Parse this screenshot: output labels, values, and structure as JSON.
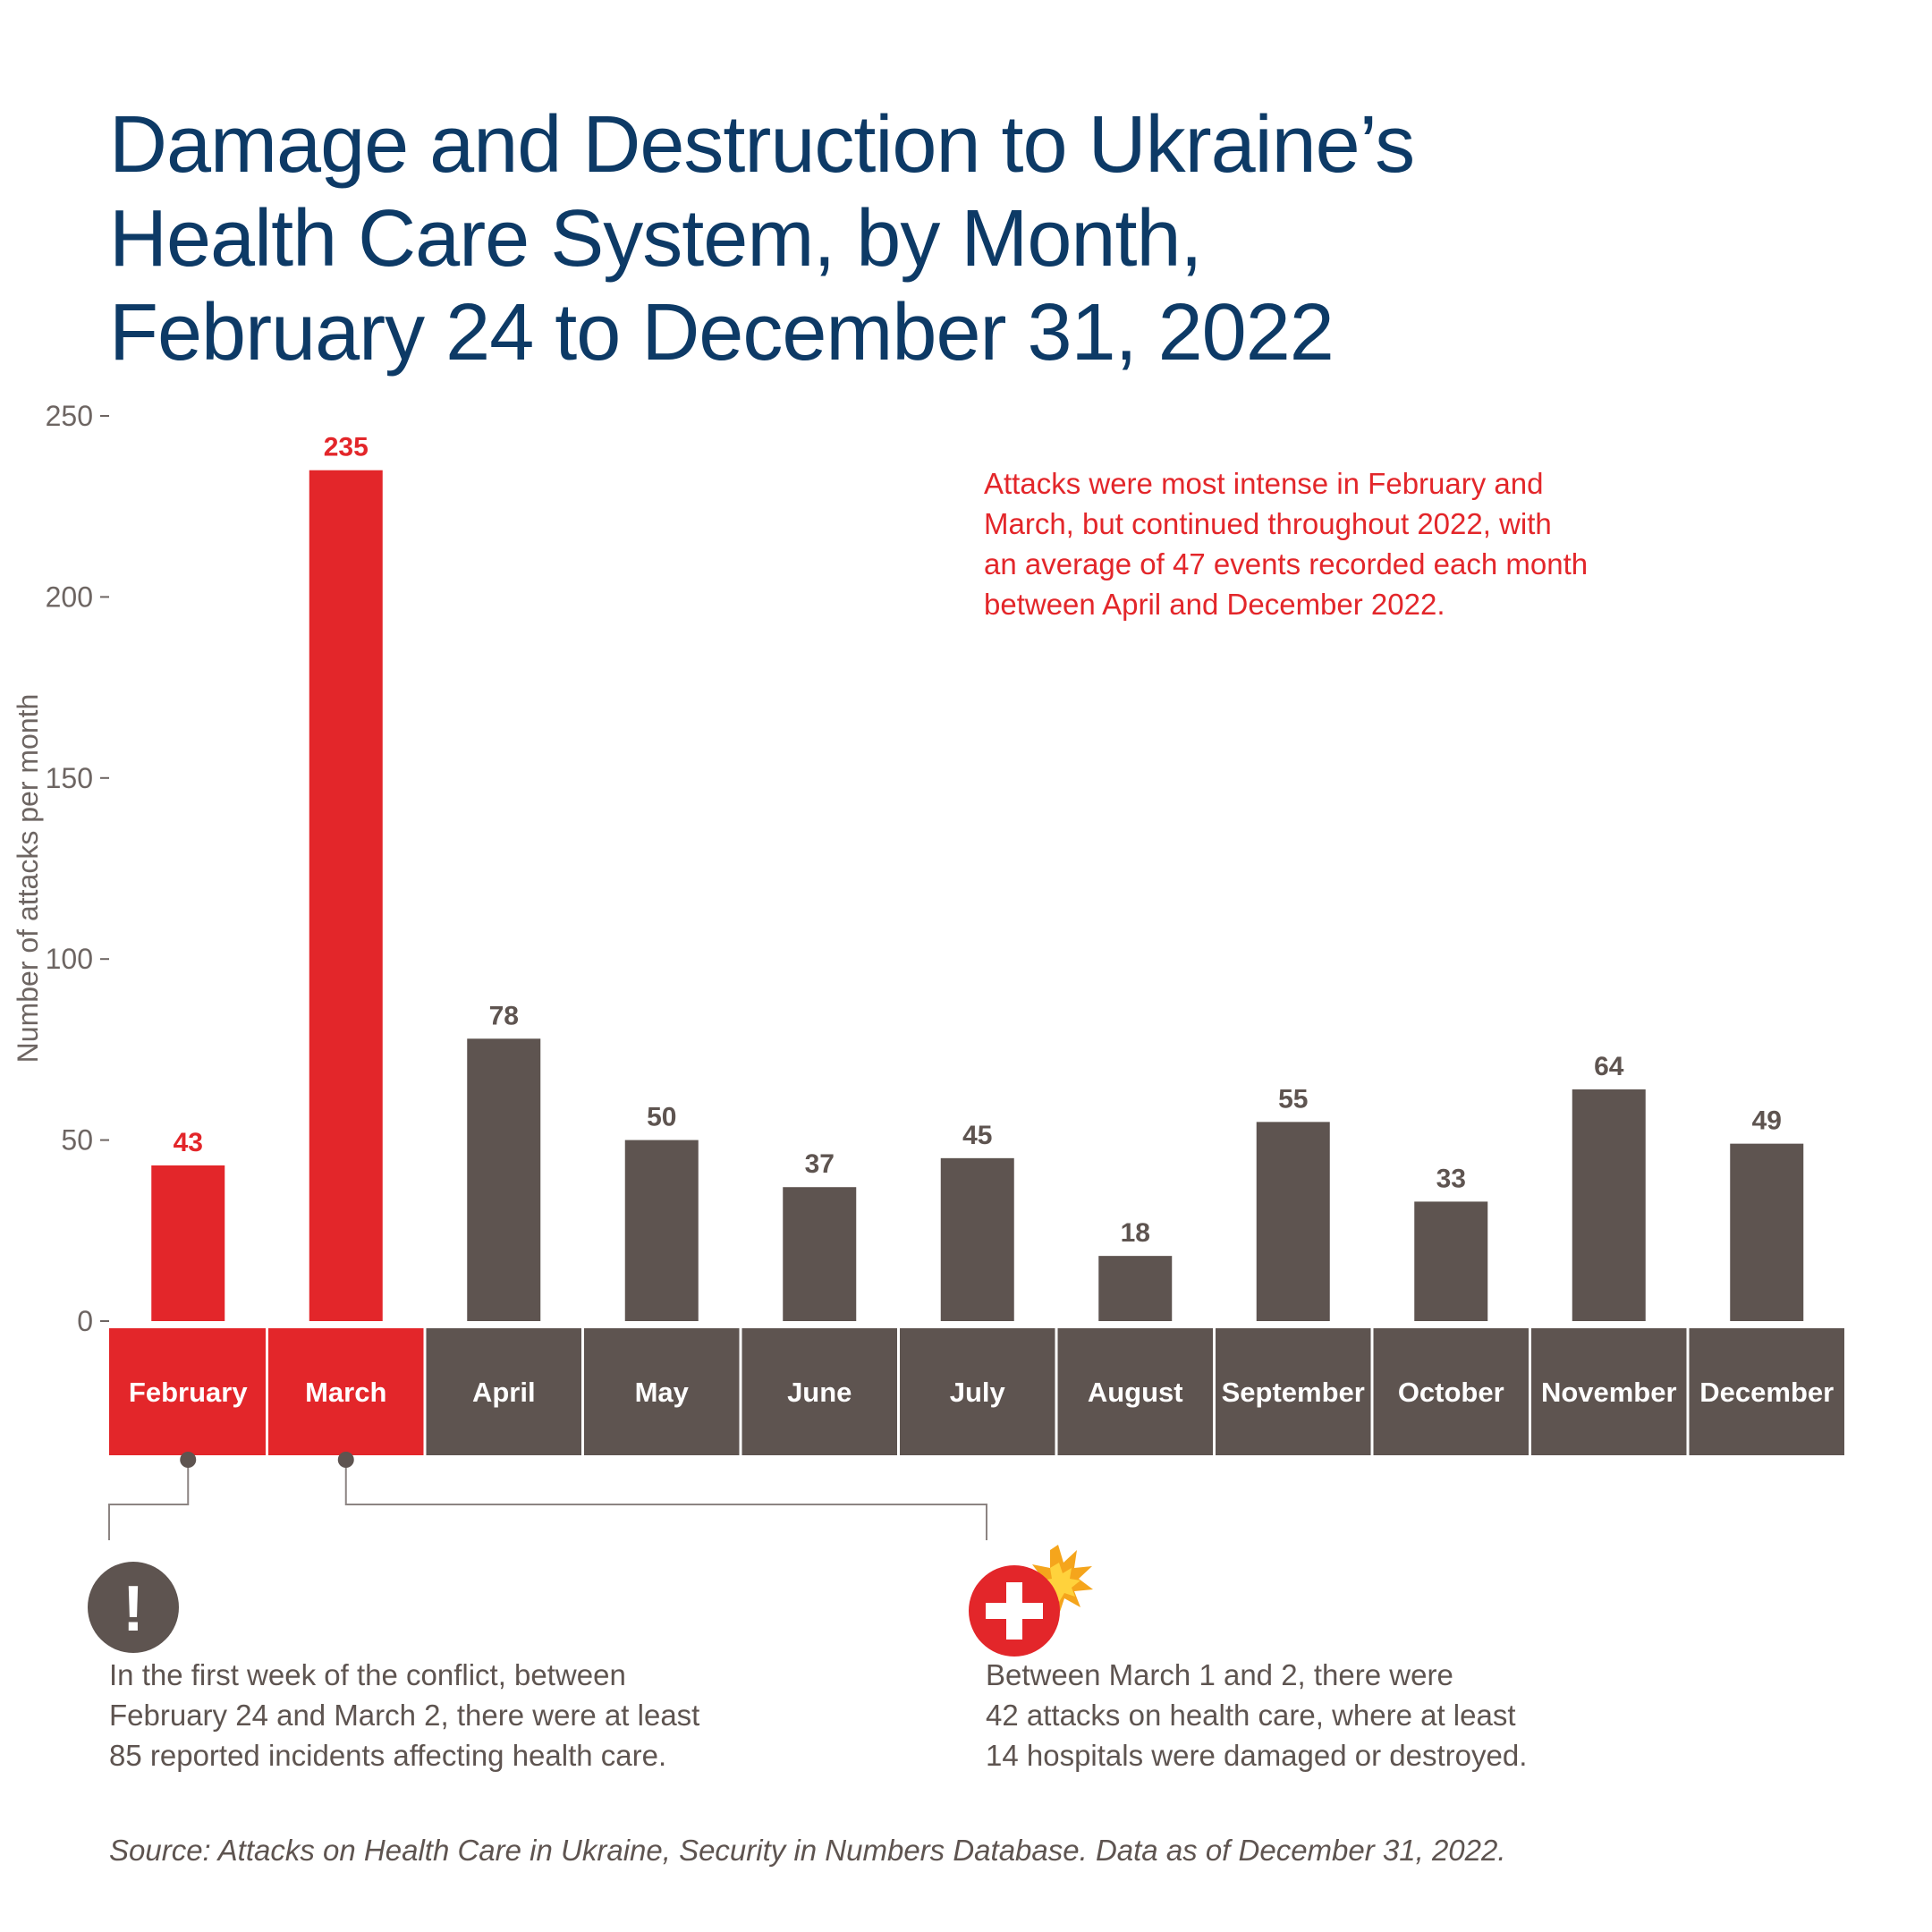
{
  "title": {
    "line1": "Damage and Destruction to Ukraine’s",
    "line2": "Health Care System, by Month,",
    "line3": "February 24 to December 31, 2022"
  },
  "colors": {
    "title": "#0d3a66",
    "highlight": "#e3262a",
    "bar": "#5e5450",
    "axis_text": "#6d6562"
  },
  "chart_data": {
    "type": "bar",
    "ylabel": "Number of attacks per month",
    "xlabel": "",
    "ylim": [
      0,
      250
    ],
    "yticks": [
      0,
      50,
      100,
      150,
      200,
      250
    ],
    "categories": [
      "February",
      "March",
      "April",
      "May",
      "June",
      "July",
      "August",
      "September",
      "October",
      "November",
      "December"
    ],
    "values": [
      43,
      235,
      78,
      50,
      37,
      45,
      18,
      55,
      33,
      64,
      49
    ],
    "highlighted": [
      "February",
      "March"
    ]
  },
  "callout_top": {
    "line1": "Attacks were most intense in February and",
    "line2": "March, but continued throughout 2022, with",
    "line3": "an average of 47 events recorded each month",
    "line4": "between April and December 2022."
  },
  "note_left": {
    "icon": "exclamation-icon",
    "glyph": "!",
    "line1": "In the first week of the conflict, between",
    "line2": "February 24 and March 2, there were at least",
    "line3": "85 reported incidents affecting health care."
  },
  "note_right": {
    "icon": "medical-cross-explosion-icon",
    "line1": "Between March 1 and 2, there were",
    "line2": "42 attacks on health care, where at least",
    "line3": "14 hospitals were damaged or destroyed."
  },
  "source": "Source: Attacks on Health Care in Ukraine, Security in Numbers Database. Data as of December 31, 2022."
}
